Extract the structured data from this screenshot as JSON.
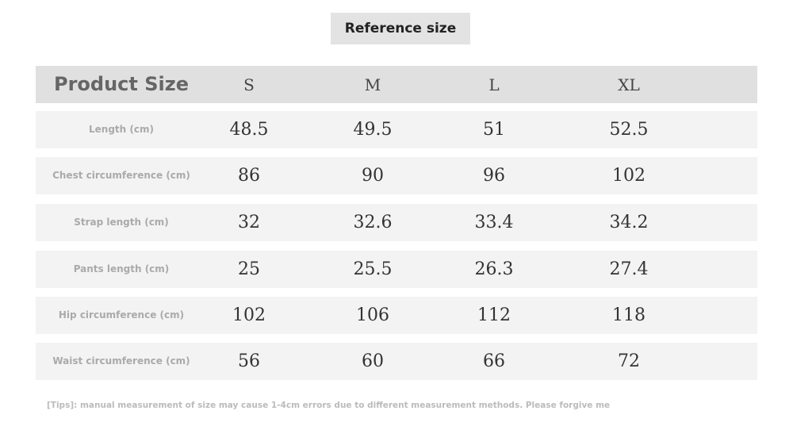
{
  "title": "Reference size",
  "header": {
    "label": "Product Size",
    "sizes": [
      "S",
      "M",
      "L",
      "XL"
    ]
  },
  "rows": [
    {
      "label": "Length (cm)",
      "values": [
        "48.5",
        "49.5",
        "51",
        "52.5"
      ]
    },
    {
      "label": "Chest circumference (cm)",
      "values": [
        "86",
        "90",
        "96",
        "102"
      ]
    },
    {
      "label": "Strap length (cm)",
      "values": [
        "32",
        "32.6",
        "33.4",
        "34.2"
      ]
    },
    {
      "label": "Pants length (cm)",
      "values": [
        "25",
        "25.5",
        "26.3",
        "27.4"
      ]
    },
    {
      "label": "Hip circumference (cm)",
      "values": [
        "102",
        "106",
        "112",
        "118"
      ]
    },
    {
      "label": "Waist circumference (cm)",
      "values": [
        "56",
        "60",
        "66",
        "72"
      ]
    }
  ],
  "tips": "[Tips]: manual measurement of size may cause 1-4cm errors due to different measurement methods. Please forgive me"
}
